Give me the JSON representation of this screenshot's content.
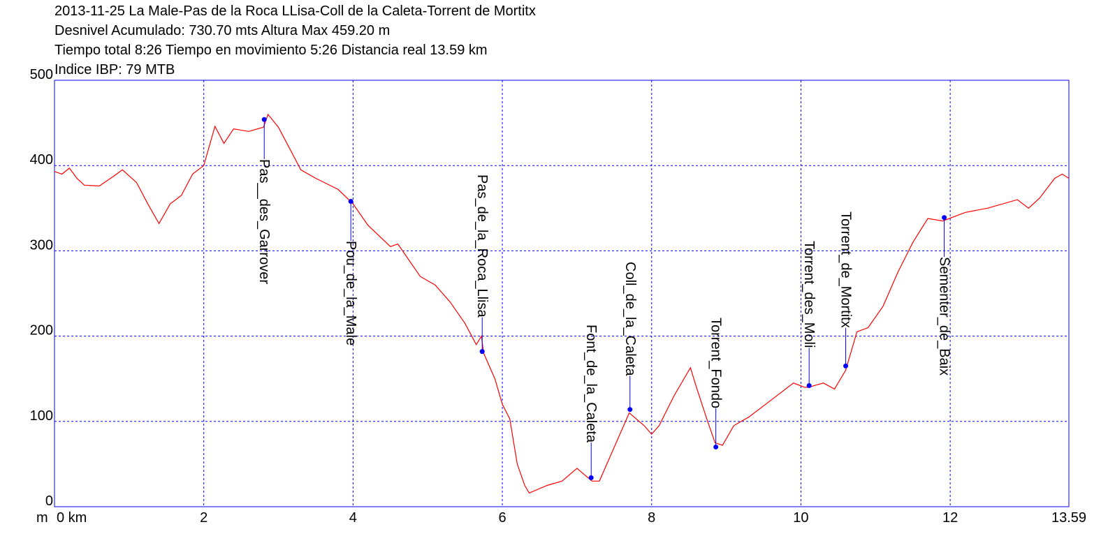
{
  "chart_data": {
    "type": "line",
    "title": [
      "2013-11-25 La Male-Pas de la Roca LLisa-Coll de la Caleta-Torrent de Mortitx",
      "Desnivel Acumulado: 730.70 mts  Altura Max 459.20 m",
      "Tiempo total 8:26 Tiempo en movimiento 5:26 Distancia real 13.59 km",
      "Indice IBP: 79 MTB"
    ],
    "y_axis_label": "m",
    "x": [
      0,
      0.1,
      0.2,
      0.3,
      0.4,
      0.6,
      0.8,
      0.91,
      1.1,
      1.25,
      1.4,
      1.55,
      1.7,
      1.85,
      2.0,
      2.15,
      2.27,
      2.4,
      2.6,
      2.8,
      2.86,
      3.0,
      3.15,
      3.3,
      3.5,
      3.8,
      4.0,
      4.2,
      4.5,
      4.6,
      4.9,
      5.1,
      5.3,
      5.5,
      5.65,
      5.72,
      5.75,
      5.9,
      6.0,
      6.1,
      6.2,
      6.3,
      6.36,
      6.6,
      6.8,
      7.0,
      7.2,
      7.3,
      7.5,
      7.7,
      7.9,
      8.0,
      8.1,
      8.3,
      8.52,
      8.6,
      8.75,
      8.85,
      8.95,
      9.1,
      9.3,
      9.6,
      9.9,
      10.05,
      10.1,
      10.3,
      10.45,
      10.6,
      10.75,
      10.9,
      11.1,
      11.3,
      11.5,
      11.7,
      11.9,
      12.2,
      12.5,
      12.9,
      13.05,
      13.2,
      13.4,
      13.5,
      13.59
    ],
    "series": [
      {
        "name": "Altura",
        "color": "#ff0000",
        "values": [
          393,
          390,
          397,
          385,
          377,
          376,
          388,
          395,
          380,
          355,
          332,
          355,
          365,
          390,
          400,
          446,
          426,
          443,
          440,
          445,
          460,
          445,
          420,
          395,
          385,
          372,
          355,
          330,
          305,
          308,
          270,
          260,
          240,
          215,
          190,
          200,
          180,
          150,
          120,
          103,
          50,
          25,
          16,
          25,
          30,
          45,
          30,
          30,
          70,
          110,
          95,
          85,
          95,
          130,
          163,
          140,
          100,
          75,
          72,
          95,
          105,
          125,
          145,
          140,
          140,
          145,
          138,
          160,
          205,
          210,
          235,
          275,
          310,
          338,
          335,
          345,
          350,
          360,
          350,
          362,
          385,
          390,
          385
        ]
      }
    ],
    "waypoints": [
      {
        "name": "Pas__des_Garrover",
        "x": 2.81,
        "y": 454
      },
      {
        "name": "Pou_de_la_Male",
        "x": 3.97,
        "y": 358
      },
      {
        "name": "Pas_de_la_Roca_Llisa",
        "x": 5.73,
        "y": 182
      },
      {
        "name": "Font_de_la_Caleta",
        "x": 7.19,
        "y": 34
      },
      {
        "name": "Coll_de_la_Caleta",
        "x": 7.71,
        "y": 114
      },
      {
        "name": "Torrent_Fondo",
        "x": 8.86,
        "y": 70
      },
      {
        "name": "Torrent_des_Moli",
        "x": 10.11,
        "y": 142
      },
      {
        "name": "Torrent_de_Mortitx",
        "x": 10.6,
        "y": 165
      },
      {
        "name": "Sementer_de_Baix",
        "x": 11.92,
        "y": 339
      }
    ],
    "waypoint_color": "#0000ff",
    "xlim": [
      0,
      13.59
    ],
    "xticks": [
      {
        "value": 0,
        "label": "0 km"
      },
      2,
      4,
      6,
      8,
      10,
      12,
      13.59
    ],
    "ylim": [
      0,
      500
    ],
    "yticks": [
      0,
      100,
      200,
      300,
      400,
      500
    ],
    "grid": true
  }
}
